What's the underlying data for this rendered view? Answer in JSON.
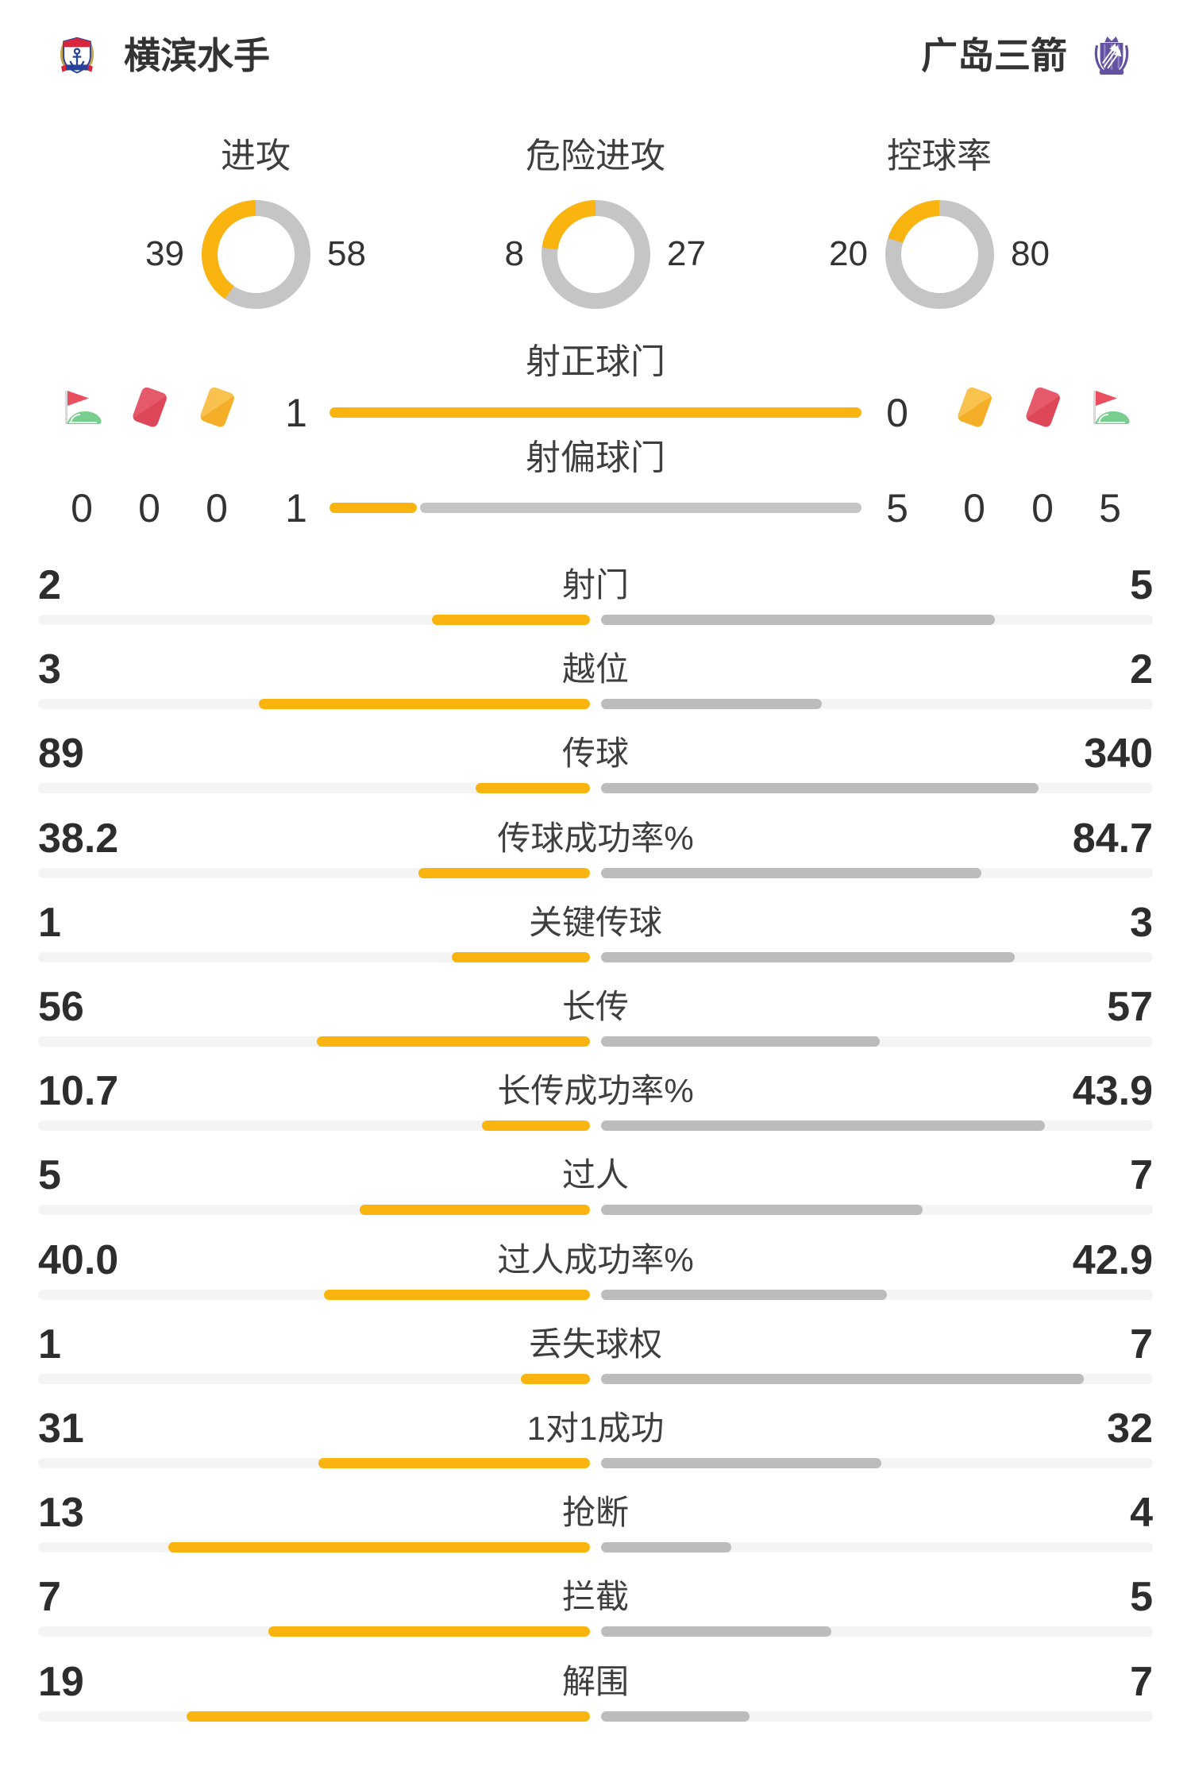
{
  "header": {
    "home": {
      "name": "横滨水手",
      "logo": "yokohama-f-marinos-crest"
    },
    "away": {
      "name": "广岛三箭",
      "logo": "sanfrecce-hiroshima-crest"
    }
  },
  "donut_section": {
    "items": [
      {
        "label": "进攻",
        "home": "39",
        "away": "58"
      },
      {
        "label": "危险进攻",
        "home": "8",
        "away": "27"
      },
      {
        "label": "控球率",
        "home": "20",
        "away": "80"
      }
    ]
  },
  "set_piece_section": {
    "left_icons": [
      {
        "icon": "corner-flag",
        "count": "0"
      },
      {
        "icon": "red-card",
        "count": "0"
      },
      {
        "icon": "yellow-card",
        "count": "0"
      }
    ],
    "right_icons": [
      {
        "icon": "yellow-card",
        "count": "0"
      },
      {
        "icon": "red-card",
        "count": "0"
      },
      {
        "icon": "corner-flag",
        "count": "5"
      }
    ],
    "bars": [
      {
        "label": "射正球门",
        "home": "1",
        "away": "0"
      },
      {
        "label": "射偏球门",
        "home": "1",
        "away": "5"
      }
    ]
  },
  "stats": [
    {
      "label": "射门",
      "home": "2",
      "away": "5"
    },
    {
      "label": "越位",
      "home": "3",
      "away": "2"
    },
    {
      "label": "传球",
      "home": "89",
      "away": "340"
    },
    {
      "label": "传球成功率%",
      "home": "38.2",
      "away": "84.7"
    },
    {
      "label": "关键传球",
      "home": "1",
      "away": "3"
    },
    {
      "label": "长传",
      "home": "56",
      "away": "57"
    },
    {
      "label": "长传成功率%",
      "home": "10.7",
      "away": "43.9"
    },
    {
      "label": "过人",
      "home": "5",
      "away": "7"
    },
    {
      "label": "过人成功率%",
      "home": "40.0",
      "away": "42.9"
    },
    {
      "label": "丢失球权",
      "home": "1",
      "away": "7"
    },
    {
      "label": "1对1成功",
      "home": "31",
      "away": "32"
    },
    {
      "label": "抢断",
      "home": "13",
      "away": "4"
    },
    {
      "label": "拦截",
      "home": "7",
      "away": "5"
    },
    {
      "label": "解围",
      "home": "19",
      "away": "7"
    }
  ],
  "colors": {
    "home_accent": "#F9B40F",
    "away_bar_gray": "#BCBCBC",
    "donut_gray": "#C5C5C5",
    "bar_track": "#F4F4F4",
    "text_dark": "#333333",
    "label_gray": "#3E3E3E",
    "card_red": "#DE4757",
    "card_yellow": "#F5AE28",
    "flag_red": "#E94F5F",
    "flag_green": "#77CE8E"
  },
  "chart_data": [
    {
      "type": "pie",
      "variant": "donut",
      "title": "进攻",
      "series": [
        {
          "name": "横滨水手",
          "value": 39
        },
        {
          "name": "广岛三箭",
          "value": 58
        }
      ],
      "colors": {
        "横滨水手": "#F9B40F",
        "广岛三箭": "#C5C5C5"
      }
    },
    {
      "type": "pie",
      "variant": "donut",
      "title": "危险进攻",
      "series": [
        {
          "name": "横滨水手",
          "value": 8
        },
        {
          "name": "广岛三箭",
          "value": 27
        }
      ]
    },
    {
      "type": "pie",
      "variant": "donut",
      "title": "控球率",
      "series": [
        {
          "name": "横滨水手",
          "value": 20
        },
        {
          "name": "广岛三箭",
          "value": 80
        }
      ]
    },
    {
      "type": "bar",
      "title": "射正球门",
      "categories": [
        "横滨水手",
        "广岛三箭"
      ],
      "values": [
        1,
        0
      ]
    },
    {
      "type": "bar",
      "title": "射偏球门",
      "categories": [
        "横滨水手",
        "广岛三箭"
      ],
      "values": [
        1,
        5
      ]
    },
    {
      "type": "bar",
      "title": "角球/红牌/黄牌",
      "categories": [
        "角球",
        "红牌",
        "黄牌"
      ],
      "series": [
        {
          "name": "横滨水手",
          "values": [
            0,
            0,
            0
          ]
        },
        {
          "name": "广岛三箭",
          "values": [
            5,
            0,
            0
          ]
        }
      ]
    },
    {
      "type": "bar",
      "title": "比赛数据对比",
      "categories": [
        "射门",
        "越位",
        "传球",
        "传球成功率%",
        "关键传球",
        "长传",
        "长传成功率%",
        "过人",
        "过人成功率%",
        "丢失球权",
        "1对1成功",
        "抢断",
        "拦截",
        "解围"
      ],
      "series": [
        {
          "name": "横滨水手",
          "values": [
            2,
            3,
            89,
            38.2,
            1,
            56,
            10.7,
            5,
            40.0,
            1,
            31,
            13,
            7,
            19
          ]
        },
        {
          "name": "广岛三箭",
          "values": [
            5,
            2,
            340,
            84.7,
            3,
            57,
            43.9,
            7,
            42.9,
            7,
            32,
            4,
            5,
            7
          ]
        }
      ],
      "layout": "diverging-from-center",
      "legend": false,
      "grid": false
    }
  ]
}
